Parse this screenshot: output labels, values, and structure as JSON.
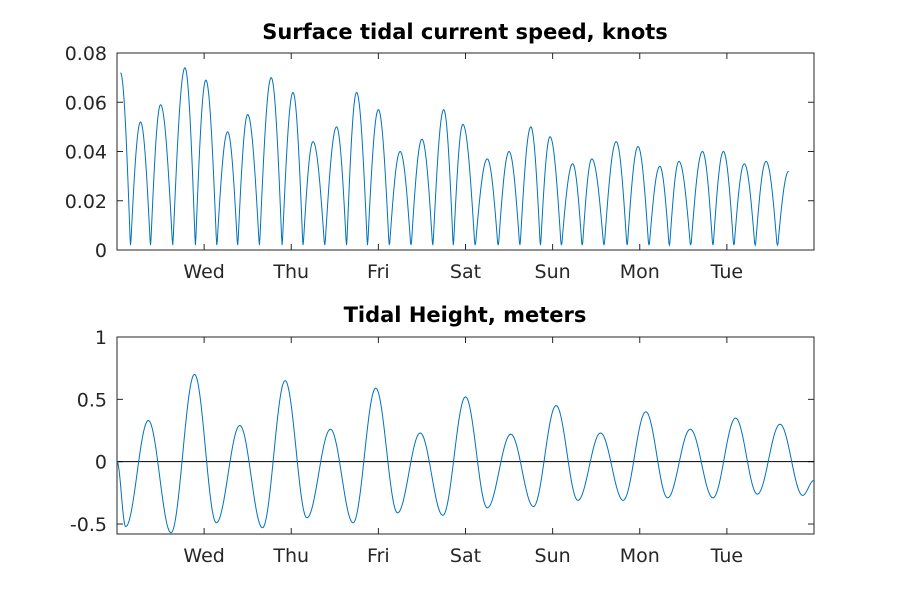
{
  "chart_data": [
    {
      "type": "line",
      "title": "Surface tidal current speed, knots",
      "xlabel": "",
      "ylabel": "",
      "x_ticks": [
        "Wed",
        "Thu",
        "Fri",
        "Sat",
        "Sun",
        "Mon",
        "Tue"
      ],
      "xlim_days": [
        0,
        8
      ],
      "ylim": [
        0,
        0.08
      ],
      "y_ticks": [
        0,
        0.02,
        0.04,
        0.06,
        0.08
      ],
      "y_tick_labels": [
        "0",
        "0.02",
        "0.04",
        "0.06",
        "0.08"
      ],
      "color": "#0072bd",
      "series": [
        {
          "x": [
            0.04,
            0.27,
            0.5,
            0.78,
            1.02,
            1.27,
            1.5,
            1.77,
            2.02,
            2.25,
            2.52,
            2.75,
            3.0,
            3.25,
            3.5,
            3.75,
            3.97,
            4.25,
            4.5,
            4.75,
            4.97,
            5.23,
            5.45,
            5.73,
            5.98,
            6.23,
            6.45,
            6.72,
            6.96,
            7.2,
            7.45,
            7.71
          ],
          "values": [
            0.072,
            0.052,
            0.059,
            0.074,
            0.069,
            0.048,
            0.055,
            0.07,
            0.064,
            0.044,
            0.05,
            0.064,
            0.057,
            0.04,
            0.045,
            0.057,
            0.051,
            0.037,
            0.04,
            0.05,
            0.046,
            0.035,
            0.037,
            0.044,
            0.042,
            0.034,
            0.036,
            0.04,
            0.04,
            0.035,
            0.036,
            0.032
          ]
        }
      ]
    },
    {
      "type": "line",
      "title": "Tidal Height, meters",
      "xlabel": "",
      "ylabel": "",
      "x_ticks": [
        "Wed",
        "Thu",
        "Fri",
        "Sat",
        "Sun",
        "Mon",
        "Tue"
      ],
      "xlim_days": [
        0,
        8
      ],
      "ylim": [
        -0.58,
        1
      ],
      "y_ticks": [
        -0.5,
        0,
        0.5,
        1
      ],
      "y_tick_labels": [
        "-0.5",
        "0",
        "0.5",
        "1"
      ],
      "zero_line": true,
      "color": "#0072bd",
      "series": [
        {
          "x": [
            0.0,
            0.1,
            0.36,
            0.62,
            0.89,
            1.14,
            1.41,
            1.67,
            1.93,
            2.18,
            2.45,
            2.71,
            2.97,
            3.22,
            3.48,
            3.74,
            4.0,
            4.25,
            4.52,
            4.78,
            5.04,
            5.29,
            5.55,
            5.81,
            6.07,
            6.32,
            6.58,
            6.84,
            7.1,
            7.35,
            7.61,
            7.87,
            8.0
          ],
          "values": [
            0.0,
            -0.52,
            0.33,
            -0.57,
            0.7,
            -0.49,
            0.29,
            -0.53,
            0.65,
            -0.45,
            0.26,
            -0.49,
            0.59,
            -0.41,
            0.23,
            -0.43,
            0.52,
            -0.37,
            0.22,
            -0.36,
            0.45,
            -0.31,
            0.23,
            -0.31,
            0.4,
            -0.29,
            0.26,
            -0.29,
            0.35,
            -0.26,
            0.3,
            -0.27,
            -0.15
          ]
        }
      ]
    }
  ]
}
